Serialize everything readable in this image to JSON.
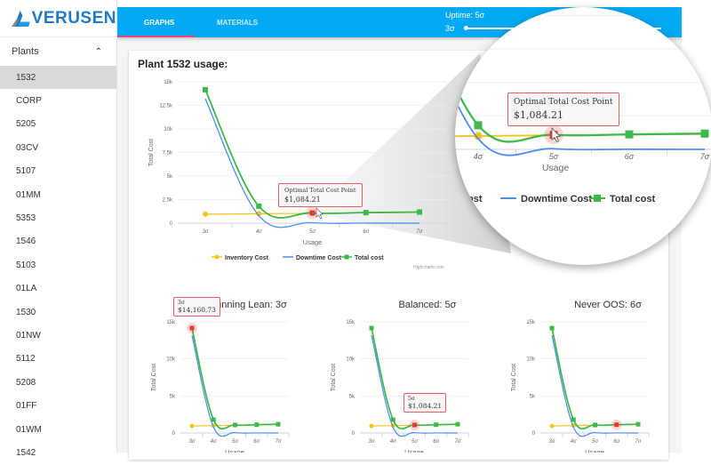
{
  "brand": {
    "name": "VERUSEN"
  },
  "sidebar": {
    "header": "Plants",
    "items": [
      "1532",
      "CORP",
      "5205",
      "03CV",
      "5107",
      "01MM",
      "5353",
      "1546",
      "5103",
      "01LA",
      "1530",
      "01NW",
      "5112",
      "5208",
      "01FF",
      "01WM",
      "1542"
    ],
    "selected": "1532"
  },
  "tabs": [
    {
      "label": "GRAPHS",
      "active": true
    },
    {
      "label": "MATERIALS",
      "active": false
    }
  ],
  "uptime": {
    "label": "Uptime: 5σ",
    "min_label": "3σ",
    "value_sigma": 5
  },
  "page_title": "Plant 1532 usage:",
  "colors": {
    "blue": "#03a9f4",
    "inventory": "#f7c21a",
    "downtime": "#4b8cf5",
    "total": "#3cb94a",
    "highlight": "#e53935"
  },
  "credits": "Highcharts.com",
  "chart_data": [
    {
      "type": "line",
      "title": "",
      "xlabel": "Usage",
      "ylabel": "Total Cost",
      "categories": [
        "3σ",
        "4σ",
        "5σ",
        "6σ",
        "7σ"
      ],
      "yticks": [
        "0",
        "2.5k",
        "5k",
        "7.5k",
        "10k",
        "12.5k",
        "15k"
      ],
      "ylim": [
        0,
        15000
      ],
      "series": [
        {
          "name": "Inventory Cost",
          "values": [
            950,
            1000,
            1050,
            1100,
            1150
          ]
        },
        {
          "name": "Downtime Cost",
          "values": [
            13200,
            800,
            50,
            10,
            0
          ]
        },
        {
          "name": "Total cost",
          "values": [
            14160.73,
            1800,
            1084.21,
            1120,
            1180
          ]
        }
      ],
      "highlight_index": 2,
      "tooltip": {
        "title": "Optimal Total Cost Point",
        "value": "$1,084.21"
      },
      "legend": "bottom"
    },
    {
      "type": "line",
      "title": "Running Lean: 3σ",
      "xlabel": "Usage",
      "ylabel": "Total Cost",
      "categories": [
        "3σ",
        "4σ",
        "5σ",
        "6σ",
        "7σ"
      ],
      "yticks": [
        "0",
        "5k",
        "10k",
        "15k"
      ],
      "ylim": [
        0,
        15000
      ],
      "highlight_index": 0,
      "tooltip": {
        "title": "3σ",
        "value": "$14,160.73"
      }
    },
    {
      "type": "line",
      "title": "Balanced: 5σ",
      "xlabel": "Usage",
      "ylabel": "Total Cost",
      "categories": [
        "3σ",
        "4σ",
        "5σ",
        "6σ",
        "7σ"
      ],
      "yticks": [
        "0",
        "5k",
        "10k",
        "15k"
      ],
      "ylim": [
        0,
        15000
      ],
      "highlight_index": 2,
      "tooltip": {
        "title": "5σ",
        "value": "$1,084.21"
      }
    },
    {
      "type": "line",
      "title": "Never OOS: 6σ",
      "xlabel": "Usage",
      "ylabel": "Total Cost",
      "categories": [
        "3σ",
        "4σ",
        "5σ",
        "6σ",
        "7σ"
      ],
      "yticks": [
        "0",
        "5k",
        "10k",
        "15k"
      ],
      "ylim": [
        0,
        15000
      ],
      "highlight_index": 3
    }
  ]
}
